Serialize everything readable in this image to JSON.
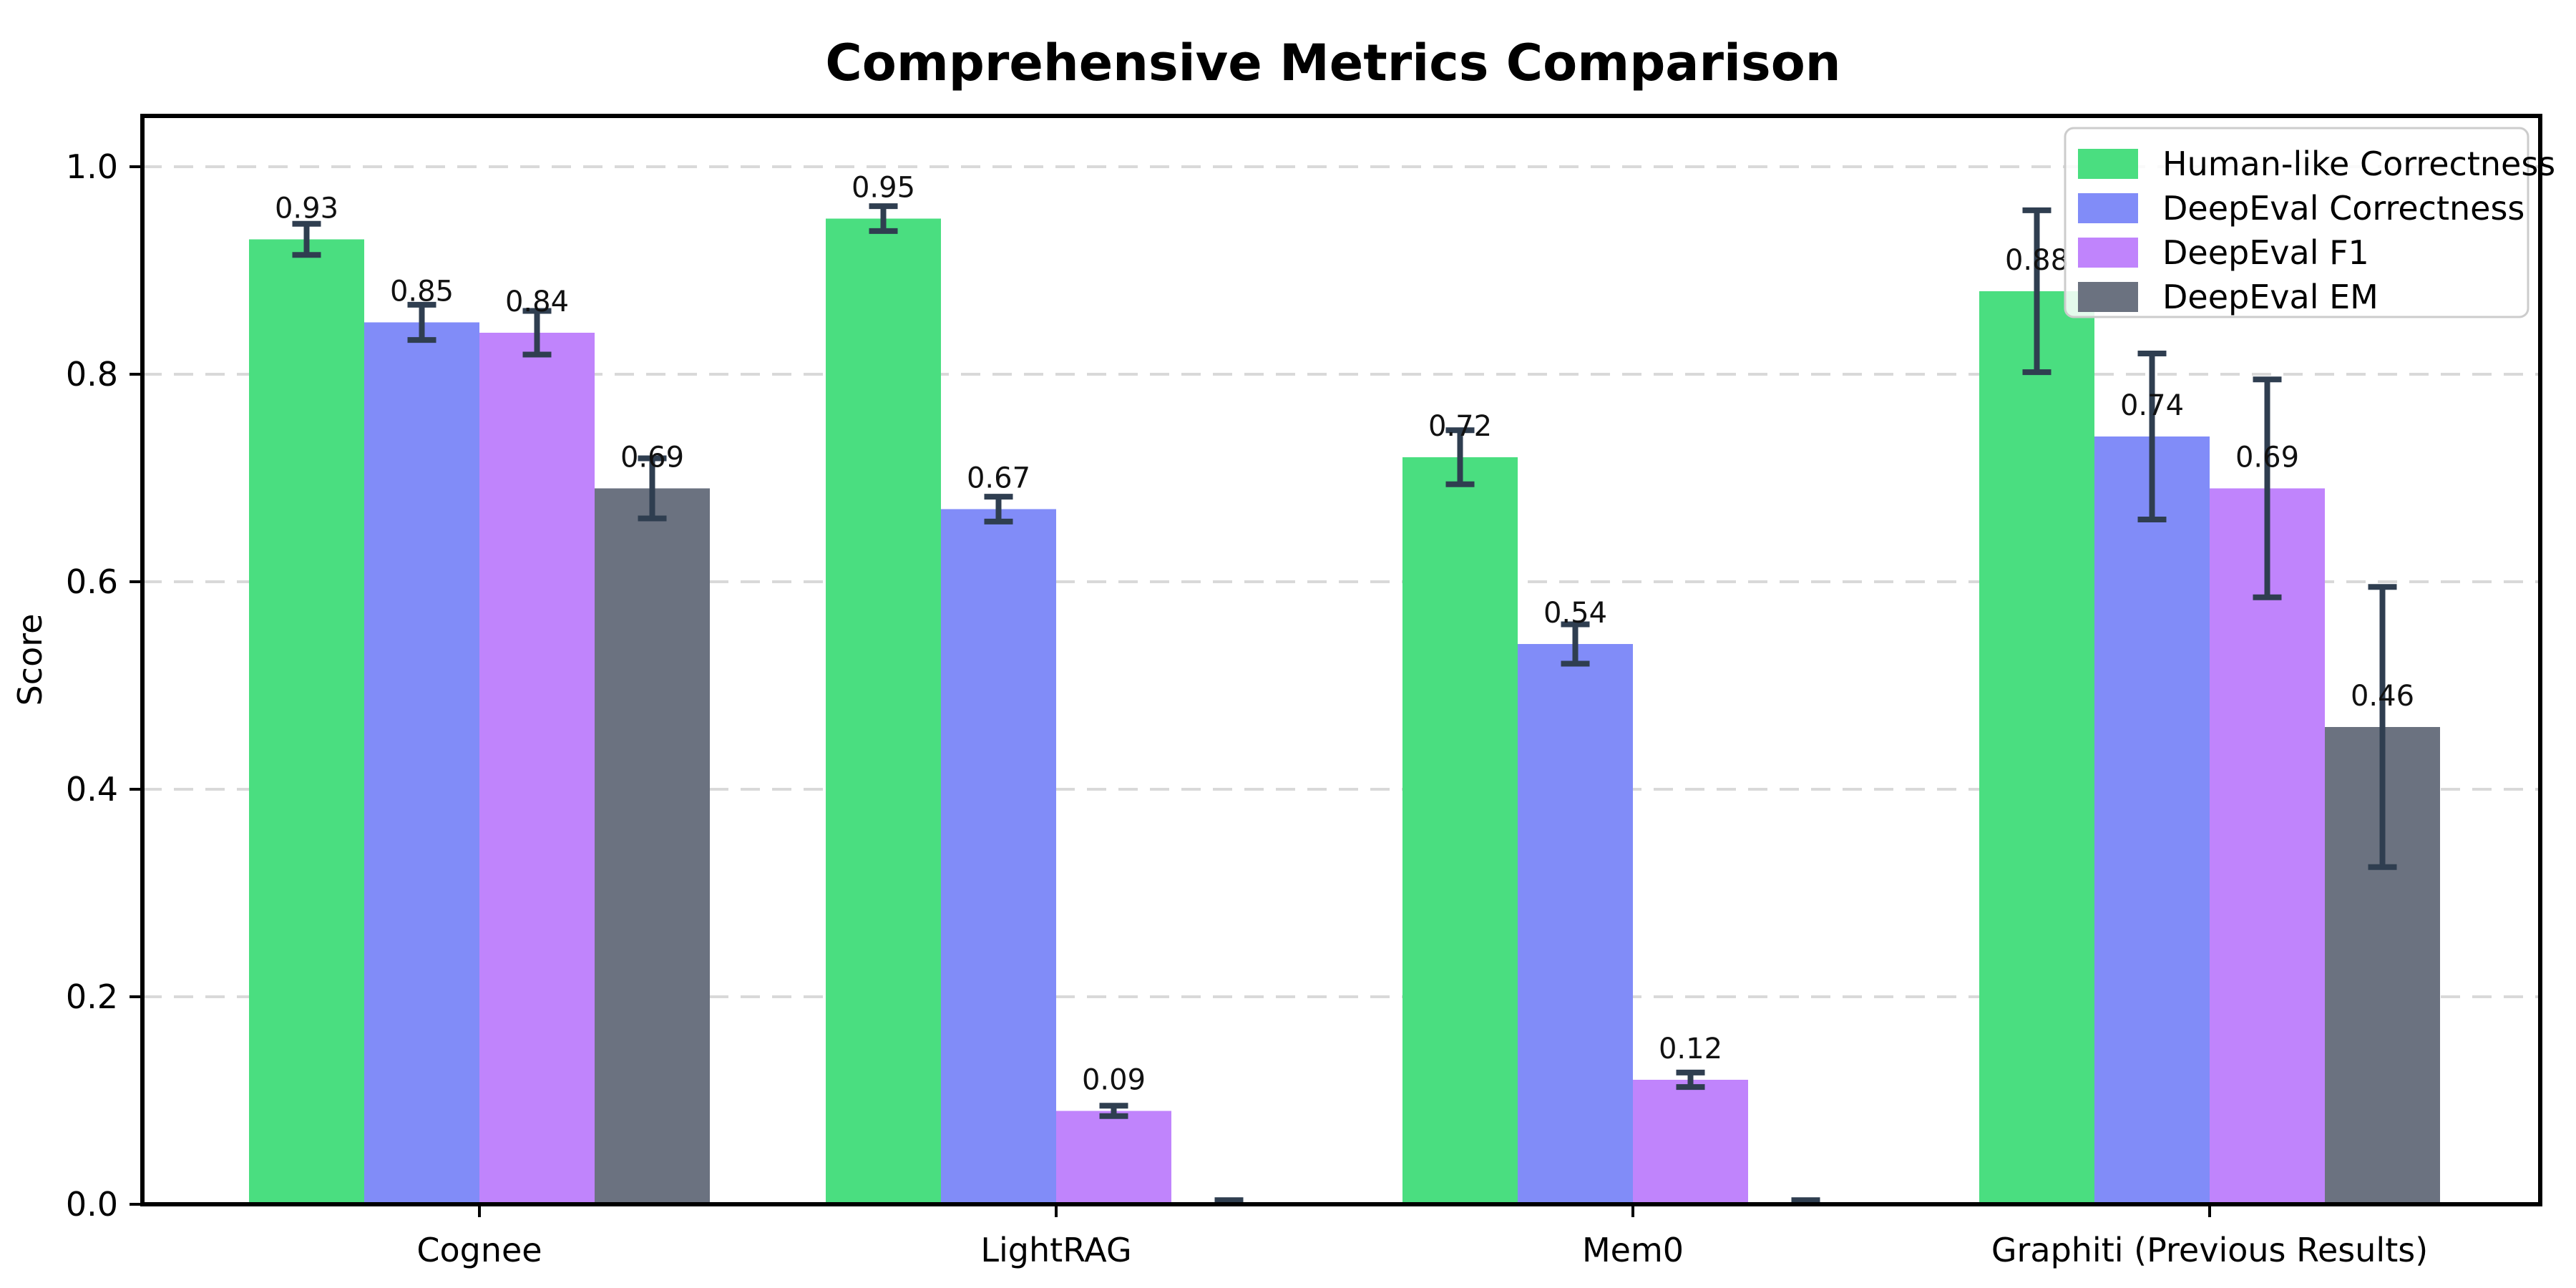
{
  "title": "Comprehensive Metrics Comparison",
  "chart_data": {
    "type": "bar",
    "title": "Comprehensive Metrics Comparison",
    "xlabel": "",
    "ylabel": "Score",
    "ylim": [
      0,
      1.05
    ],
    "grid": "horizontal-dashed",
    "legend_position": "upper right",
    "categories": [
      "Cognee",
      "LightRAG",
      "Mem0",
      "Graphiti (Previous Results)"
    ],
    "yticks": [
      {
        "value": 0.0,
        "label": "0.0"
      },
      {
        "value": 0.2,
        "label": "0.2"
      },
      {
        "value": 0.4,
        "label": "0.4"
      },
      {
        "value": 0.6,
        "label": "0.6"
      },
      {
        "value": 0.8,
        "label": "0.8"
      },
      {
        "value": 1.0,
        "label": "1.0"
      }
    ],
    "series": [
      {
        "name": "Human-like Correctness",
        "color": "#4ade80",
        "values": [
          0.93,
          0.95,
          0.72,
          0.88
        ],
        "errors": [
          0.015,
          0.012,
          0.026,
          0.078
        ],
        "labels": [
          "0.93",
          "0.95",
          "0.72",
          "0.88"
        ]
      },
      {
        "name": "DeepEval Correctness",
        "color": "#818cf8",
        "values": [
          0.85,
          0.67,
          0.54,
          0.74
        ],
        "errors": [
          0.017,
          0.012,
          0.019,
          0.08
        ],
        "labels": [
          "0.85",
          "0.67",
          "0.54",
          "0.74"
        ]
      },
      {
        "name": "DeepEval F1",
        "color": "#c084fc",
        "values": [
          0.84,
          0.09,
          0.12,
          0.69
        ],
        "errors": [
          0.021,
          0.005,
          0.007,
          0.105
        ],
        "labels": [
          "0.84",
          "0.09",
          "0.12",
          "0.69"
        ]
      },
      {
        "name": "DeepEval EM",
        "color": "#6b7280",
        "values": [
          0.69,
          0.0,
          0.0,
          0.46
        ],
        "errors": [
          0.029,
          0.004,
          0.004,
          0.135
        ],
        "labels": [
          "0.69",
          "",
          "",
          "0.46"
        ]
      }
    ],
    "colors": {
      "error_bar": "#2f3e50",
      "grid": "#d9d9d9",
      "axis": "#000000",
      "value_label": "#111111",
      "legend_border": "#cccccc"
    }
  }
}
